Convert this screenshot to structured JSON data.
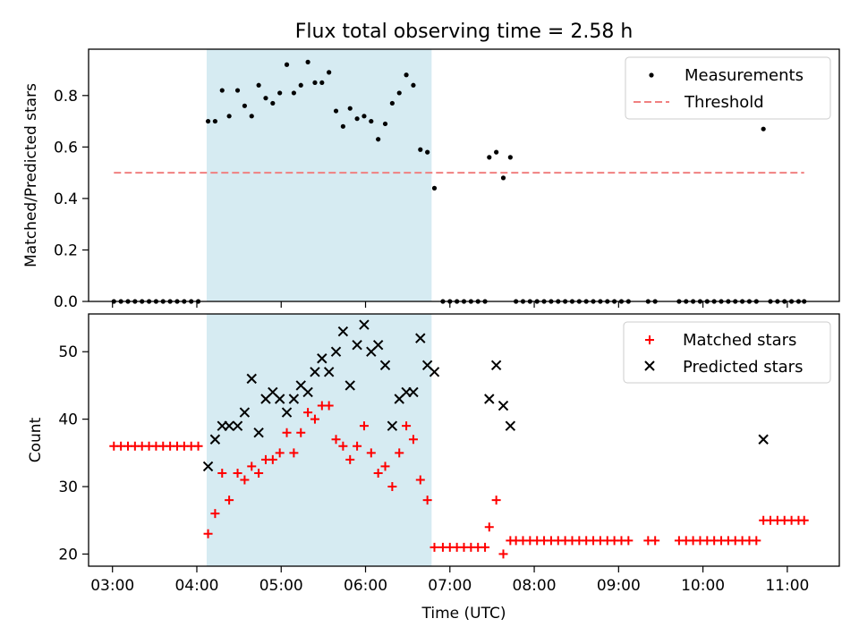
{
  "title": "Flux total observing time = 2.58 h",
  "xlabel": "Time (UTC)",
  "chart_data": [
    {
      "type": "scatter",
      "ylabel": "Matched/Predicted stars",
      "xlim": [
        "02:43",
        "11:37"
      ],
      "ylim": [
        0,
        0.98
      ],
      "y_ticks": [
        0.0,
        0.2,
        0.4,
        0.6,
        0.8
      ],
      "y_tick_labels": [
        "0.0",
        "0.2",
        "0.4",
        "0.6",
        "0.8"
      ],
      "shaded_span": [
        "04:07",
        "06:47"
      ],
      "shaded_color": "#add8e6",
      "legend": {
        "position": "upper right",
        "entries": [
          {
            "label": "Measurements",
            "marker": "dot",
            "color": "#000000"
          },
          {
            "label": "Threshold",
            "marker": "dashed-line",
            "color": "#f08080"
          }
        ]
      },
      "threshold": {
        "name": "Threshold",
        "y": 0.5,
        "x_range": [
          "03:01",
          "11:12"
        ],
        "color": "#f08080"
      },
      "series": [
        {
          "name": "Measurements",
          "marker": "dot",
          "color": "#000000",
          "points": [
            [
              "03:01",
              0
            ],
            [
              "03:06",
              0
            ],
            [
              "03:11",
              0
            ],
            [
              "03:16",
              0
            ],
            [
              "03:21",
              0
            ],
            [
              "03:26",
              0
            ],
            [
              "03:31",
              0
            ],
            [
              "03:36",
              0
            ],
            [
              "03:41",
              0
            ],
            [
              "03:46",
              0
            ],
            [
              "03:51",
              0
            ],
            [
              "03:56",
              0
            ],
            [
              "04:01",
              0
            ],
            [
              "04:08",
              0.7
            ],
            [
              "04:13",
              0.7
            ],
            [
              "04:18",
              0.82
            ],
            [
              "04:23",
              0.72
            ],
            [
              "04:29",
              0.82
            ],
            [
              "04:34",
              0.76
            ],
            [
              "04:39",
              0.72
            ],
            [
              "04:44",
              0.84
            ],
            [
              "04:49",
              0.79
            ],
            [
              "04:54",
              0.77
            ],
            [
              "04:59",
              0.81
            ],
            [
              "05:04",
              0.92
            ],
            [
              "05:09",
              0.81
            ],
            [
              "05:14",
              0.84
            ],
            [
              "05:19",
              0.93
            ],
            [
              "05:24",
              0.85
            ],
            [
              "05:29",
              0.85
            ],
            [
              "05:34",
              0.89
            ],
            [
              "05:39",
              0.74
            ],
            [
              "05:44",
              0.68
            ],
            [
              "05:49",
              0.75
            ],
            [
              "05:54",
              0.71
            ],
            [
              "05:59",
              0.72
            ],
            [
              "06:04",
              0.7
            ],
            [
              "06:09",
              0.63
            ],
            [
              "06:14",
              0.69
            ],
            [
              "06:19",
              0.77
            ],
            [
              "06:24",
              0.81
            ],
            [
              "06:29",
              0.88
            ],
            [
              "06:34",
              0.84
            ],
            [
              "06:39",
              0.59
            ],
            [
              "06:44",
              0.58
            ],
            [
              "06:49",
              0.44
            ],
            [
              "06:55",
              0
            ],
            [
              "07:00",
              0
            ],
            [
              "07:05",
              0
            ],
            [
              "07:10",
              0
            ],
            [
              "07:15",
              0
            ],
            [
              "07:20",
              0
            ],
            [
              "07:25",
              0
            ],
            [
              "07:28",
              0.56
            ],
            [
              "07:33",
              0.58
            ],
            [
              "07:38",
              0.48
            ],
            [
              "07:43",
              0.56
            ],
            [
              "07:47",
              0
            ],
            [
              "07:52",
              0
            ],
            [
              "07:57",
              0
            ],
            [
              "08:02",
              0
            ],
            [
              "08:07",
              0
            ],
            [
              "08:12",
              0
            ],
            [
              "08:17",
              0
            ],
            [
              "08:22",
              0
            ],
            [
              "08:27",
              0
            ],
            [
              "08:32",
              0
            ],
            [
              "08:37",
              0
            ],
            [
              "08:42",
              0
            ],
            [
              "08:47",
              0
            ],
            [
              "08:52",
              0
            ],
            [
              "08:57",
              0
            ],
            [
              "09:02",
              0
            ],
            [
              "09:07",
              0
            ],
            [
              "09:21",
              0
            ],
            [
              "09:26",
              0
            ],
            [
              "09:43",
              0
            ],
            [
              "09:48",
              0
            ],
            [
              "09:53",
              0
            ],
            [
              "09:58",
              0
            ],
            [
              "10:03",
              0
            ],
            [
              "10:08",
              0
            ],
            [
              "10:13",
              0
            ],
            [
              "10:18",
              0
            ],
            [
              "10:23",
              0
            ],
            [
              "10:28",
              0
            ],
            [
              "10:33",
              0
            ],
            [
              "10:38",
              0
            ],
            [
              "10:43",
              0.67
            ],
            [
              "10:48",
              0
            ],
            [
              "10:53",
              0
            ],
            [
              "10:58",
              0
            ],
            [
              "11:03",
              0
            ],
            [
              "11:08",
              0
            ],
            [
              "11:12",
              0
            ]
          ]
        }
      ]
    },
    {
      "type": "scatter",
      "ylabel": "Count",
      "xlim": [
        "02:43",
        "11:37"
      ],
      "ylim": [
        18.2,
        55.6
      ],
      "x_ticks": [
        "03:00",
        "04:00",
        "05:00",
        "06:00",
        "07:00",
        "08:00",
        "09:00",
        "10:00",
        "11:00"
      ],
      "y_ticks": [
        20,
        30,
        40,
        50
      ],
      "y_tick_labels": [
        "20",
        "30",
        "40",
        "50"
      ],
      "shaded_span": [
        "04:07",
        "06:47"
      ],
      "shaded_color": "#add8e6",
      "legend": {
        "position": "upper right",
        "entries": [
          {
            "label": "Matched stars",
            "marker": "plus",
            "color": "#ff0000"
          },
          {
            "label": "Predicted stars",
            "marker": "x",
            "color": "#000000"
          }
        ]
      },
      "series": [
        {
          "name": "Matched stars",
          "marker": "plus",
          "color": "#ff0000",
          "points": [
            [
              "03:01",
              36
            ],
            [
              "03:06",
              36
            ],
            [
              "03:11",
              36
            ],
            [
              "03:16",
              36
            ],
            [
              "03:21",
              36
            ],
            [
              "03:26",
              36
            ],
            [
              "03:31",
              36
            ],
            [
              "03:36",
              36
            ],
            [
              "03:41",
              36
            ],
            [
              "03:46",
              36
            ],
            [
              "03:51",
              36
            ],
            [
              "03:56",
              36
            ],
            [
              "04:01",
              36
            ],
            [
              "04:08",
              23
            ],
            [
              "04:13",
              26
            ],
            [
              "04:18",
              32
            ],
            [
              "04:23",
              28
            ],
            [
              "04:29",
              32
            ],
            [
              "04:34",
              31
            ],
            [
              "04:39",
              33
            ],
            [
              "04:44",
              32
            ],
            [
              "04:49",
              34
            ],
            [
              "04:54",
              34
            ],
            [
              "04:59",
              35
            ],
            [
              "05:04",
              38
            ],
            [
              "05:09",
              35
            ],
            [
              "05:14",
              38
            ],
            [
              "05:19",
              41
            ],
            [
              "05:24",
              40
            ],
            [
              "05:29",
              42
            ],
            [
              "05:34",
              42
            ],
            [
              "05:39",
              37
            ],
            [
              "05:44",
              36
            ],
            [
              "05:49",
              34
            ],
            [
              "05:54",
              36
            ],
            [
              "05:59",
              39
            ],
            [
              "06:04",
              35
            ],
            [
              "06:09",
              32
            ],
            [
              "06:14",
              33
            ],
            [
              "06:19",
              30
            ],
            [
              "06:24",
              35
            ],
            [
              "06:29",
              39
            ],
            [
              "06:34",
              37
            ],
            [
              "06:39",
              31
            ],
            [
              "06:44",
              28
            ],
            [
              "06:49",
              21
            ],
            [
              "06:55",
              21
            ],
            [
              "07:00",
              21
            ],
            [
              "07:05",
              21
            ],
            [
              "07:10",
              21
            ],
            [
              "07:15",
              21
            ],
            [
              "07:20",
              21
            ],
            [
              "07:25",
              21
            ],
            [
              "07:28",
              24
            ],
            [
              "07:33",
              28
            ],
            [
              "07:38",
              20
            ],
            [
              "07:43",
              22
            ],
            [
              "07:47",
              22
            ],
            [
              "07:52",
              22
            ],
            [
              "07:57",
              22
            ],
            [
              "08:02",
              22
            ],
            [
              "08:07",
              22
            ],
            [
              "08:12",
              22
            ],
            [
              "08:17",
              22
            ],
            [
              "08:22",
              22
            ],
            [
              "08:27",
              22
            ],
            [
              "08:32",
              22
            ],
            [
              "08:37",
              22
            ],
            [
              "08:42",
              22
            ],
            [
              "08:47",
              22
            ],
            [
              "08:52",
              22
            ],
            [
              "08:57",
              22
            ],
            [
              "09:02",
              22
            ],
            [
              "09:07",
              22
            ],
            [
              "09:21",
              22
            ],
            [
              "09:26",
              22
            ],
            [
              "09:43",
              22
            ],
            [
              "09:48",
              22
            ],
            [
              "09:53",
              22
            ],
            [
              "09:58",
              22
            ],
            [
              "10:03",
              22
            ],
            [
              "10:08",
              22
            ],
            [
              "10:13",
              22
            ],
            [
              "10:18",
              22
            ],
            [
              "10:23",
              22
            ],
            [
              "10:28",
              22
            ],
            [
              "10:33",
              22
            ],
            [
              "10:38",
              22
            ],
            [
              "10:43",
              25
            ],
            [
              "10:48",
              25
            ],
            [
              "10:53",
              25
            ],
            [
              "10:58",
              25
            ],
            [
              "11:03",
              25
            ],
            [
              "11:08",
              25
            ],
            [
              "11:12",
              25
            ]
          ]
        },
        {
          "name": "Predicted stars",
          "marker": "x",
          "color": "#000000",
          "points": [
            [
              "04:08",
              33
            ],
            [
              "04:13",
              37
            ],
            [
              "04:18",
              39
            ],
            [
              "04:23",
              39
            ],
            [
              "04:29",
              39
            ],
            [
              "04:34",
              41
            ],
            [
              "04:39",
              46
            ],
            [
              "04:44",
              38
            ],
            [
              "04:49",
              43
            ],
            [
              "04:54",
              44
            ],
            [
              "04:59",
              43
            ],
            [
              "05:04",
              41
            ],
            [
              "05:09",
              43
            ],
            [
              "05:14",
              45
            ],
            [
              "05:19",
              44
            ],
            [
              "05:24",
              47
            ],
            [
              "05:29",
              49
            ],
            [
              "05:34",
              47
            ],
            [
              "05:39",
              50
            ],
            [
              "05:44",
              53
            ],
            [
              "05:49",
              45
            ],
            [
              "05:54",
              51
            ],
            [
              "05:59",
              54
            ],
            [
              "06:04",
              50
            ],
            [
              "06:09",
              51
            ],
            [
              "06:14",
              48
            ],
            [
              "06:19",
              39
            ],
            [
              "06:24",
              43
            ],
            [
              "06:29",
              44
            ],
            [
              "06:34",
              44
            ],
            [
              "06:39",
              52
            ],
            [
              "06:44",
              48
            ],
            [
              "06:49",
              47
            ],
            [
              "07:28",
              43
            ],
            [
              "07:33",
              48
            ],
            [
              "07:38",
              42
            ],
            [
              "07:43",
              39
            ],
            [
              "10:43",
              37
            ]
          ]
        }
      ]
    }
  ]
}
